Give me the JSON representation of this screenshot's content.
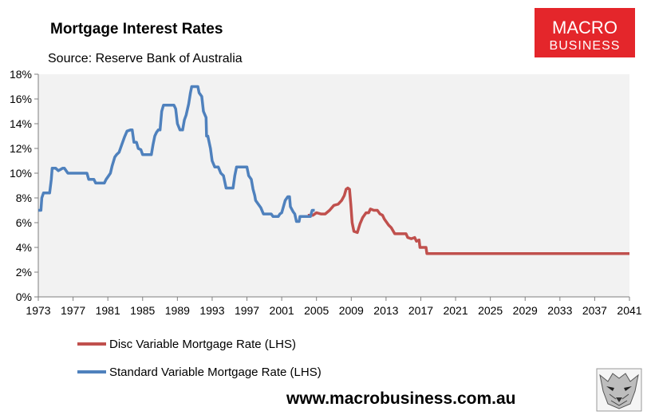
{
  "chart_data": {
    "type": "line",
    "title": "Mortgage Interest Rates",
    "subtitle": "Source: Reserve Bank of Australia",
    "xlim": [
      1973,
      2041
    ],
    "ylim": [
      0,
      18
    ],
    "x_ticks": [
      "1973",
      "1977",
      "1981",
      "1985",
      "1989",
      "1993",
      "1997",
      "2001",
      "2005",
      "2009",
      "2013",
      "2017",
      "2021",
      "2025",
      "2029",
      "2033",
      "2037",
      "2041"
    ],
    "y_ticks": [
      "0%",
      "2%",
      "4%",
      "6%",
      "8%",
      "10%",
      "12%",
      "14%",
      "16%",
      "18%"
    ],
    "plot_background": "#f2f2f2",
    "legend_position": "bottom-left",
    "series": [
      {
        "name": "Disc Variable Mortgage Rate (LHS)",
        "color": "#c0504d",
        "points": [
          [
            2004.0,
            6.6
          ],
          [
            2004.6,
            6.6
          ],
          [
            2005.0,
            6.8
          ],
          [
            2005.5,
            6.7
          ],
          [
            2006.0,
            6.7
          ],
          [
            2006.5,
            7.0
          ],
          [
            2007.0,
            7.4
          ],
          [
            2007.5,
            7.5
          ],
          [
            2007.9,
            7.8
          ],
          [
            2008.2,
            8.2
          ],
          [
            2008.4,
            8.7
          ],
          [
            2008.6,
            8.8
          ],
          [
            2008.8,
            8.7
          ],
          [
            2008.95,
            7.5
          ],
          [
            2009.1,
            6.0
          ],
          [
            2009.3,
            5.3
          ],
          [
            2009.7,
            5.2
          ],
          [
            2010.0,
            5.9
          ],
          [
            2010.3,
            6.4
          ],
          [
            2010.7,
            6.8
          ],
          [
            2011.0,
            6.8
          ],
          [
            2011.2,
            7.1
          ],
          [
            2011.6,
            7.0
          ],
          [
            2012.0,
            7.0
          ],
          [
            2012.3,
            6.7
          ],
          [
            2012.6,
            6.6
          ],
          [
            2012.8,
            6.3
          ],
          [
            2013.0,
            6.1
          ],
          [
            2013.3,
            5.8
          ],
          [
            2013.6,
            5.6
          ],
          [
            2014.0,
            5.1
          ],
          [
            2014.5,
            5.1
          ],
          [
            2015.3,
            5.1
          ],
          [
            2015.5,
            4.8
          ],
          [
            2015.9,
            4.7
          ],
          [
            2016.3,
            4.8
          ],
          [
            2016.5,
            4.5
          ],
          [
            2016.8,
            4.6
          ],
          [
            2016.9,
            4.0
          ],
          [
            2017.0,
            4.0
          ],
          [
            2017.6,
            4.0
          ],
          [
            2017.7,
            3.5
          ],
          [
            2041.0,
            3.5
          ]
        ]
      },
      {
        "name": "Standard Variable Mortgage Rate (LHS)",
        "color": "#4f81bd",
        "points": [
          [
            1973.0,
            7.0
          ],
          [
            1973.3,
            7.0
          ],
          [
            1973.4,
            8.0
          ],
          [
            1973.6,
            8.4
          ],
          [
            1974.0,
            8.4
          ],
          [
            1974.3,
            8.4
          ],
          [
            1974.5,
            9.5
          ],
          [
            1974.6,
            10.4
          ],
          [
            1975.0,
            10.4
          ],
          [
            1975.3,
            10.2
          ],
          [
            1975.8,
            10.4
          ],
          [
            1976.0,
            10.4
          ],
          [
            1976.4,
            10.0
          ],
          [
            1977.0,
            10.0
          ],
          [
            1978.0,
            10.0
          ],
          [
            1978.6,
            10.0
          ],
          [
            1978.8,
            9.5
          ],
          [
            1979.4,
            9.5
          ],
          [
            1979.6,
            9.2
          ],
          [
            1980.0,
            9.2
          ],
          [
            1980.6,
            9.2
          ],
          [
            1980.8,
            9.5
          ],
          [
            1981.0,
            9.7
          ],
          [
            1981.3,
            10.0
          ],
          [
            1981.5,
            10.6
          ],
          [
            1981.8,
            11.3
          ],
          [
            1982.0,
            11.5
          ],
          [
            1982.3,
            11.7
          ],
          [
            1982.6,
            12.3
          ],
          [
            1982.9,
            12.9
          ],
          [
            1983.2,
            13.4
          ],
          [
            1983.6,
            13.5
          ],
          [
            1983.8,
            13.5
          ],
          [
            1984.0,
            12.5
          ],
          [
            1984.3,
            12.5
          ],
          [
            1984.5,
            12.0
          ],
          [
            1984.8,
            11.9
          ],
          [
            1985.0,
            11.5
          ],
          [
            1985.6,
            11.5
          ],
          [
            1986.0,
            11.5
          ],
          [
            1986.2,
            12.3
          ],
          [
            1986.4,
            13.0
          ],
          [
            1986.6,
            13.3
          ],
          [
            1986.8,
            13.5
          ],
          [
            1987.0,
            13.5
          ],
          [
            1987.2,
            15.0
          ],
          [
            1987.4,
            15.5
          ],
          [
            1988.0,
            15.5
          ],
          [
            1988.6,
            15.5
          ],
          [
            1988.8,
            15.2
          ],
          [
            1989.0,
            14.0
          ],
          [
            1989.3,
            13.5
          ],
          [
            1989.6,
            13.5
          ],
          [
            1989.8,
            14.3
          ],
          [
            1990.0,
            14.7
          ],
          [
            1990.3,
            15.6
          ],
          [
            1990.5,
            16.5
          ],
          [
            1990.65,
            17.0
          ],
          [
            1991.0,
            17.0
          ],
          [
            1991.35,
            17.0
          ],
          [
            1991.5,
            16.5
          ],
          [
            1991.8,
            16.2
          ],
          [
            1992.0,
            15.0
          ],
          [
            1992.3,
            14.5
          ],
          [
            1992.35,
            13.0
          ],
          [
            1992.5,
            13.0
          ],
          [
            1992.8,
            12.0
          ],
          [
            1993.0,
            11.0
          ],
          [
            1993.3,
            10.5
          ],
          [
            1993.7,
            10.5
          ],
          [
            1994.0,
            10.0
          ],
          [
            1994.3,
            9.8
          ],
          [
            1994.6,
            8.8
          ],
          [
            1995.0,
            8.8
          ],
          [
            1995.4,
            8.8
          ],
          [
            1995.6,
            9.8
          ],
          [
            1995.8,
            10.5
          ],
          [
            1996.6,
            10.5
          ],
          [
            1997.0,
            10.5
          ],
          [
            1997.2,
            9.8
          ],
          [
            1997.5,
            9.5
          ],
          [
            1997.7,
            8.7
          ],
          [
            1997.9,
            8.2
          ],
          [
            1998.0,
            7.8
          ],
          [
            1998.3,
            7.5
          ],
          [
            1998.6,
            7.2
          ],
          [
            1998.9,
            6.7
          ],
          [
            1999.5,
            6.7
          ],
          [
            1999.8,
            6.7
          ],
          [
            2000.0,
            6.5
          ],
          [
            2000.6,
            6.5
          ],
          [
            2000.8,
            6.7
          ],
          [
            2001.0,
            6.8
          ],
          [
            2001.2,
            7.3
          ],
          [
            2001.4,
            7.8
          ],
          [
            2001.7,
            8.1
          ],
          [
            2001.9,
            8.1
          ],
          [
            2002.0,
            7.3
          ],
          [
            2002.3,
            6.9
          ],
          [
            2002.5,
            6.7
          ],
          [
            2002.7,
            6.1
          ],
          [
            2003.0,
            6.1
          ],
          [
            2003.1,
            6.5
          ],
          [
            2004.0,
            6.5
          ],
          [
            2004.3,
            6.5
          ],
          [
            2004.5,
            7.0
          ],
          [
            2004.8,
            7.0
          ]
        ]
      }
    ]
  },
  "logo": {
    "line1": "MACRO",
    "line2": "BUSINESS",
    "color": "#e4262b"
  },
  "website": "www.macrobusiness.com.au",
  "mascot_icon": "wolf-icon"
}
